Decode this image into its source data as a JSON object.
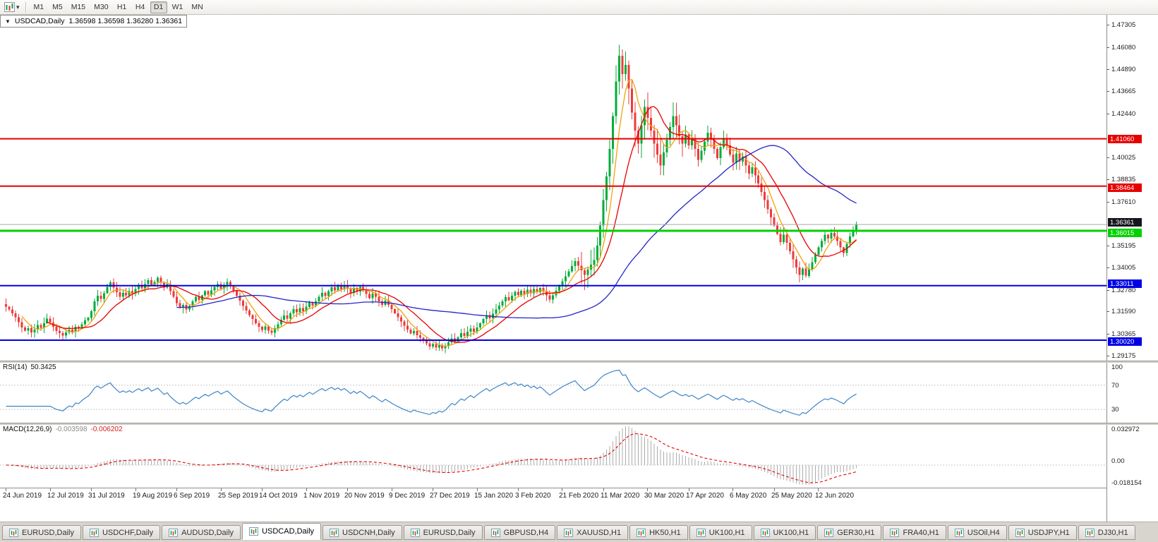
{
  "toolbar": {
    "timeframes": [
      "M1",
      "M5",
      "M15",
      "M30",
      "H1",
      "H4",
      "D1",
      "W1",
      "MN"
    ],
    "active_timeframe": "D1",
    "dropdown_glyph": "▾"
  },
  "title_bar": {
    "collapse_icon": "▼",
    "symbol": "USDCAD,Daily",
    "quote": "1.36598 1.36598 1.36280 1.36361"
  },
  "price_scale": {
    "ticks": [
      "1.47305",
      "1.46080",
      "1.44890",
      "1.43665",
      "1.42440",
      "1.40025",
      "1.38835",
      "1.37610",
      "1.35195",
      "1.34005",
      "1.32780",
      "1.31590",
      "1.30365",
      "1.29175"
    ]
  },
  "levels": [
    {
      "label": "1.41060",
      "price": 1.4106,
      "color": "#e60000",
      "thickness": 2
    },
    {
      "label": "1.38464",
      "price": 1.38464,
      "color": "#e60000",
      "thickness": 2
    },
    {
      "label": "1.36015",
      "price": 1.36015,
      "color": "#00d200",
      "thickness": 3
    },
    {
      "label": "1.33011",
      "price": 1.33011,
      "color": "#0000e6",
      "thickness": 2
    },
    {
      "label": "1.30020",
      "price": 1.3002,
      "color": "#0000e6",
      "thickness": 2
    }
  ],
  "current_price": {
    "label": "1.36361",
    "value": 1.36361
  },
  "rsi": {
    "title": "RSI(14)",
    "value": "50.3425",
    "period": 14,
    "levels": [
      100,
      70,
      30
    ],
    "level_labels": [
      "100",
      "70",
      "30"
    ],
    "range": [
      8,
      108
    ],
    "line_color": "#3d85c8"
  },
  "macd": {
    "title": "MACD(12,26,9)",
    "value1": "-0.003598",
    "value2": "-0.006202",
    "fast": 12,
    "slow": 26,
    "signal": 9,
    "range": [
      -0.018154,
      0.032972
    ],
    "scale_labels": {
      "max": "0.032972",
      "zero": "0.00",
      "min": "-0.018154"
    },
    "histogram_color": "#ababab",
    "signal_color": "#e60000"
  },
  "time_axis": [
    {
      "label": "24 Jun 2019",
      "i": 0
    },
    {
      "label": "12 Jul 2019",
      "i": 14
    },
    {
      "label": "31 Jul 2019",
      "i": 27
    },
    {
      "label": "19 Aug 2019",
      "i": 41
    },
    {
      "label": "6 Sep 2019",
      "i": 54
    },
    {
      "label": "25 Sep 2019",
      "i": 68
    },
    {
      "label": "14 Oct 2019",
      "i": 81
    },
    {
      "label": "1 Nov 2019",
      "i": 95
    },
    {
      "label": "20 Nov 2019",
      "i": 108
    },
    {
      "label": "9 Dec 2019",
      "i": 122
    },
    {
      "label": "27 Dec 2019",
      "i": 135
    },
    {
      "label": "15 Jan 2020",
      "i": 149
    },
    {
      "label": "3 Feb 2020",
      "i": 162
    },
    {
      "label": "21 Feb 2020",
      "i": 176
    },
    {
      "label": "11 Mar 2020",
      "i": 189
    },
    {
      "label": "30 Mar 2020",
      "i": 203
    },
    {
      "label": "17 Apr 2020",
      "i": 216
    },
    {
      "label": "6 May 2020",
      "i": 230
    },
    {
      "label": "25 May 2020",
      "i": 243
    },
    {
      "label": "12 Jun 2020",
      "i": 257
    }
  ],
  "tabs": [
    "EURUSD,Daily",
    "USDCHF,Daily",
    "AUDUSD,Daily",
    "USDCAD,Daily",
    "USDCNH,Daily",
    "EURUSD,Daily",
    "GBPUSD,H4",
    "XAUUSD,H1",
    "HK50,H1",
    "UK100,H1",
    "UK100,H1",
    "GER30,H1",
    "FRA40,H1",
    "USOil,H4",
    "USDJPY,H1",
    "DJ30,H1"
  ],
  "active_tab_index": 3,
  "colors": {
    "bull": "#00ad39",
    "bear": "#ec3b3b",
    "current_line": "#a8a8a8",
    "current_badge": "#15151e",
    "grid_dotted": "#c9c9c9"
  },
  "chart_data": {
    "type": "candlestick",
    "symbol": "USDCAD",
    "timeframe": "Daily",
    "y_range": [
      1.289,
      1.4785
    ],
    "first_open": 1.32,
    "moving_averages": [
      {
        "period": 6,
        "color": "#f0a30a"
      },
      {
        "period": 14,
        "color": "#e60000"
      },
      {
        "period": 55,
        "color": "#2424c8"
      }
    ],
    "closes": [
      1.3185,
      1.317,
      1.315,
      1.3128,
      1.31,
      1.3072,
      1.3055,
      1.3068,
      1.3045,
      1.306,
      1.3085,
      1.307,
      1.3095,
      1.312,
      1.3098,
      1.3075,
      1.3052,
      1.304,
      1.3028,
      1.3045,
      1.306,
      1.3048,
      1.3075,
      1.3068,
      1.309,
      1.311,
      1.3125,
      1.316,
      1.3215,
      1.3245,
      1.3228,
      1.326,
      1.3295,
      1.332,
      1.329,
      1.3265,
      1.324,
      1.3262,
      1.3248,
      1.327,
      1.3255,
      1.3282,
      1.3305,
      1.3286,
      1.331,
      1.333,
      1.3302,
      1.3322,
      1.3344,
      1.3318,
      1.329,
      1.331,
      1.327,
      1.324,
      1.3205,
      1.318,
      1.3195,
      1.317,
      1.319,
      1.3215,
      1.324,
      1.3222,
      1.3248,
      1.327,
      1.3252,
      1.3275,
      1.3295,
      1.331,
      1.3285,
      1.3305,
      1.3322,
      1.3298,
      1.327,
      1.3245,
      1.3218,
      1.319,
      1.3165,
      1.314,
      1.3118,
      1.3095,
      1.3075,
      1.3058,
      1.3078,
      1.3055,
      1.3042,
      1.3068,
      1.309,
      1.3115,
      1.3138,
      1.312,
      1.315,
      1.3172,
      1.3155,
      1.3178,
      1.316,
      1.3185,
      1.321,
      1.3192,
      1.3215,
      1.324,
      1.3262,
      1.3244,
      1.327,
      1.3292,
      1.3275,
      1.3298,
      1.328,
      1.3302,
      1.3285,
      1.3262,
      1.3288,
      1.327,
      1.3295,
      1.3278,
      1.3255,
      1.3232,
      1.3258,
      1.324,
      1.3215,
      1.3195,
      1.3218,
      1.3196,
      1.3172,
      1.315,
      1.3128,
      1.3105,
      1.3082,
      1.306,
      1.3038,
      1.3052,
      1.303,
      1.3015,
      1.3,
      1.2985,
      1.2968,
      1.298,
      1.2962,
      1.2975,
      1.2958,
      1.297,
      1.299,
      1.3012,
      1.2995,
      1.3018,
      1.304,
      1.3025,
      1.3048,
      1.3065,
      1.3048,
      1.3072,
      1.3095,
      1.3118,
      1.314,
      1.3122,
      1.3148,
      1.317,
      1.3192,
      1.3215,
      1.3238,
      1.322,
      1.3245,
      1.3268,
      1.325,
      1.3272,
      1.3255,
      1.3278,
      1.326,
      1.3282,
      1.3265,
      1.3288,
      1.327,
      1.3248,
      1.3225,
      1.3248,
      1.3272,
      1.3298,
      1.3325,
      1.3352,
      1.338,
      1.3408,
      1.3435,
      1.341,
      1.3385,
      1.336,
      1.3388,
      1.3415,
      1.3442,
      1.352,
      1.363,
      1.377,
      1.39,
      1.405,
      1.423,
      1.442,
      1.456,
      1.446,
      1.451,
      1.438,
      1.425,
      1.415,
      1.408,
      1.418,
      1.428,
      1.422,
      1.415,
      1.408,
      1.402,
      1.396,
      1.403,
      1.41,
      1.417,
      1.423,
      1.418,
      1.412,
      1.408,
      1.413,
      1.407,
      1.411,
      1.405,
      1.399,
      1.404,
      1.409,
      1.414,
      1.41,
      1.405,
      1.4,
      1.406,
      1.411,
      1.407,
      1.402,
      1.3975,
      1.4025,
      1.398,
      1.401,
      1.396,
      1.3915,
      1.395,
      1.3905,
      1.386,
      1.3815,
      1.377,
      1.372,
      1.3675,
      1.363,
      1.3585,
      1.354,
      1.358,
      1.3535,
      1.349,
      1.3445,
      1.34,
      1.336,
      1.3395,
      1.3355,
      1.339,
      1.343,
      1.347,
      1.351,
      1.3545,
      1.358,
      1.356,
      1.359,
      1.357,
      1.3545,
      1.351,
      1.348,
      1.353,
      1.357,
      1.3605,
      1.36361
    ]
  }
}
